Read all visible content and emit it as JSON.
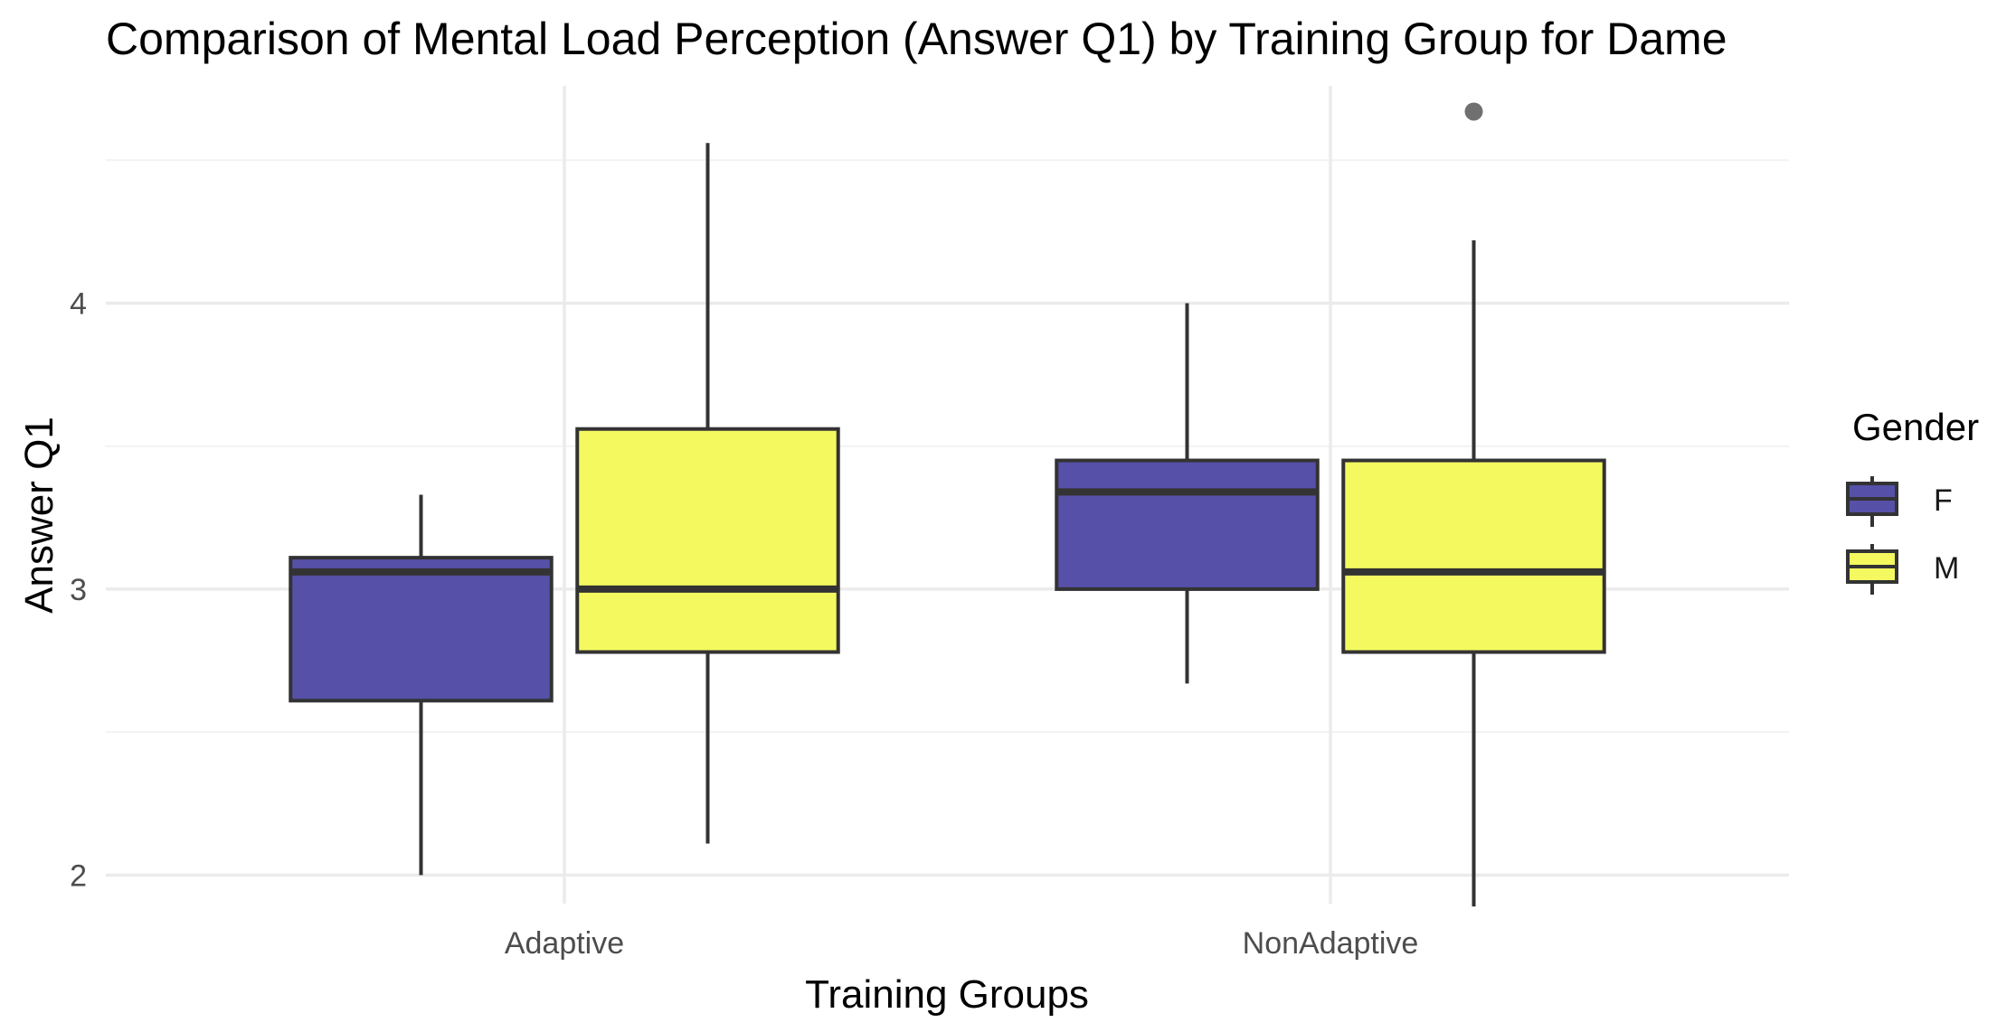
{
  "chart_data": {
    "type": "boxplot",
    "title": "Comparison of Mental Load Perception (Answer Q1) by Training Group for Dame",
    "xlabel": "Training Groups",
    "ylabel": "Answer Q1",
    "categories": [
      "Adaptive",
      "NonAdaptive"
    ],
    "y_ticks": [
      2,
      3,
      4
    ],
    "ylim": [
      1.9,
      4.76
    ],
    "grid": true,
    "legend": {
      "title": "Gender",
      "placement": "right",
      "entries": [
        "F",
        "M"
      ]
    },
    "series": [
      {
        "name": "F",
        "color": "#5650a8",
        "boxes": [
          {
            "category": "Adaptive",
            "whisker_low": 2.0,
            "q1": 2.61,
            "median": 3.06,
            "q3": 3.11,
            "whisker_high": 3.33,
            "outliers": []
          },
          {
            "category": "NonAdaptive",
            "whisker_low": 2.67,
            "q1": 3.0,
            "median": 3.34,
            "q3": 3.45,
            "whisker_high": 4.0,
            "outliers": []
          }
        ]
      },
      {
        "name": "M",
        "color": "#f4f960",
        "boxes": [
          {
            "category": "Adaptive",
            "whisker_low": 2.11,
            "q1": 2.78,
            "median": 3.0,
            "q3": 3.56,
            "whisker_high": 4.56,
            "outliers": []
          },
          {
            "category": "NonAdaptive",
            "whisker_low": 1.89,
            "q1": 2.78,
            "median": 3.06,
            "q3": 3.45,
            "whisker_high": 4.22,
            "outliers": [
              4.67
            ]
          }
        ]
      }
    ]
  }
}
